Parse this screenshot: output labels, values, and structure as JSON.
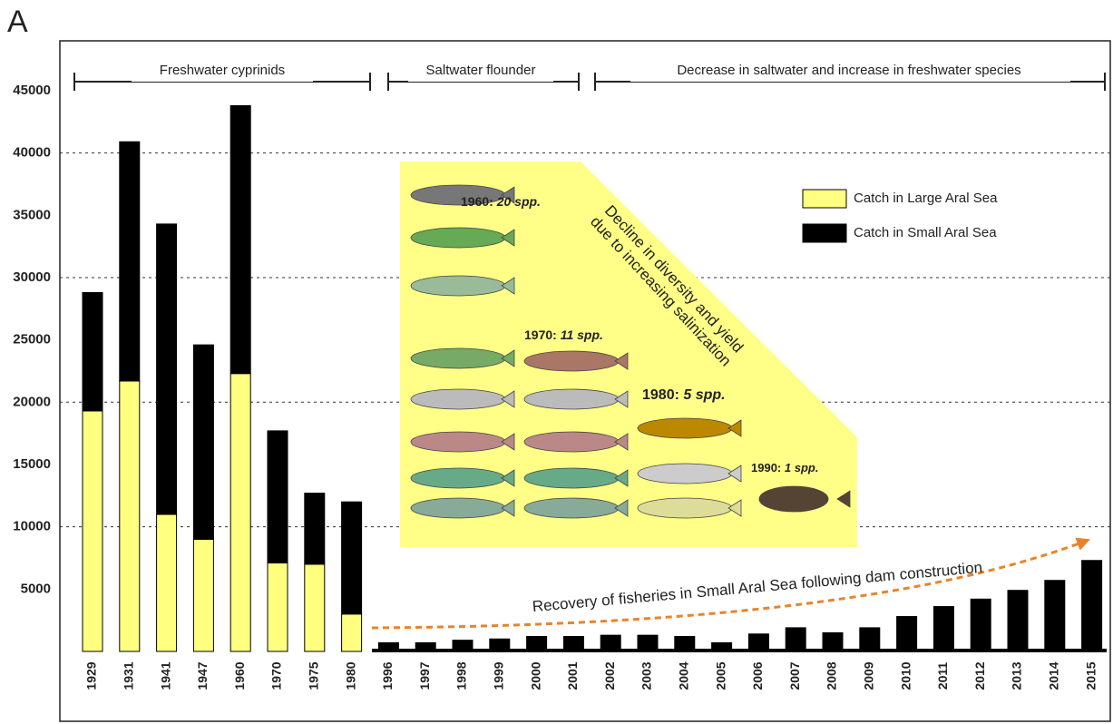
{
  "chart_data": {
    "type": "bar",
    "stacked": true,
    "panel_label": "A",
    "categories": [
      "1929",
      "1931",
      "1941",
      "1947",
      "1960",
      "1970",
      "1975",
      "1980",
      "1996",
      "1997",
      "1998",
      "1999",
      "2000",
      "2001",
      "2002",
      "2003",
      "2004",
      "2005",
      "2006",
      "2007",
      "2008",
      "2009",
      "2010",
      "2011",
      "2012",
      "2013",
      "2014",
      "2015"
    ],
    "series": [
      {
        "name": "Catch in Large Aral Sea",
        "color": "#ffff80",
        "values": [
          19300,
          21700,
          11000,
          9000,
          22300,
          7100,
          7000,
          3000,
          null,
          null,
          null,
          null,
          null,
          null,
          null,
          null,
          null,
          null,
          null,
          null,
          null,
          null,
          null,
          null,
          null,
          null,
          null,
          null
        ]
      },
      {
        "name": "Catch in Small Aral Sea",
        "color": "#000000",
        "values": [
          9500,
          19200,
          23300,
          15600,
          21500,
          10600,
          5700,
          9000,
          700,
          700,
          900,
          1000,
          1200,
          1200,
          1300,
          1300,
          1200,
          700,
          1400,
          1900,
          1500,
          1900,
          2800,
          3600,
          4200,
          4900,
          5700,
          7300
        ]
      }
    ],
    "ylim": [
      0,
      49000
    ],
    "yticks": [
      5000,
      10000,
      15000,
      20000,
      25000,
      30000,
      35000,
      40000,
      45000
    ],
    "grid": true,
    "periods": [
      "Freshwater cyprinids",
      "Saltwater flounder",
      "Decrease in saltwater and increase in freshwater species"
    ],
    "inset": {
      "title_lines": [
        "Decline in diversity and yield",
        "due to increasing salinization"
      ],
      "labels": [
        {
          "year": "1960:",
          "species": "20 spp."
        },
        {
          "year": "1970:",
          "species": "11 spp."
        },
        {
          "year": "1980:",
          "species": "5 spp."
        },
        {
          "year": "1990:",
          "species": "1 spp."
        }
      ]
    },
    "annotation": "Recovery of fisheries in Small Aral Sea following dam construction"
  }
}
